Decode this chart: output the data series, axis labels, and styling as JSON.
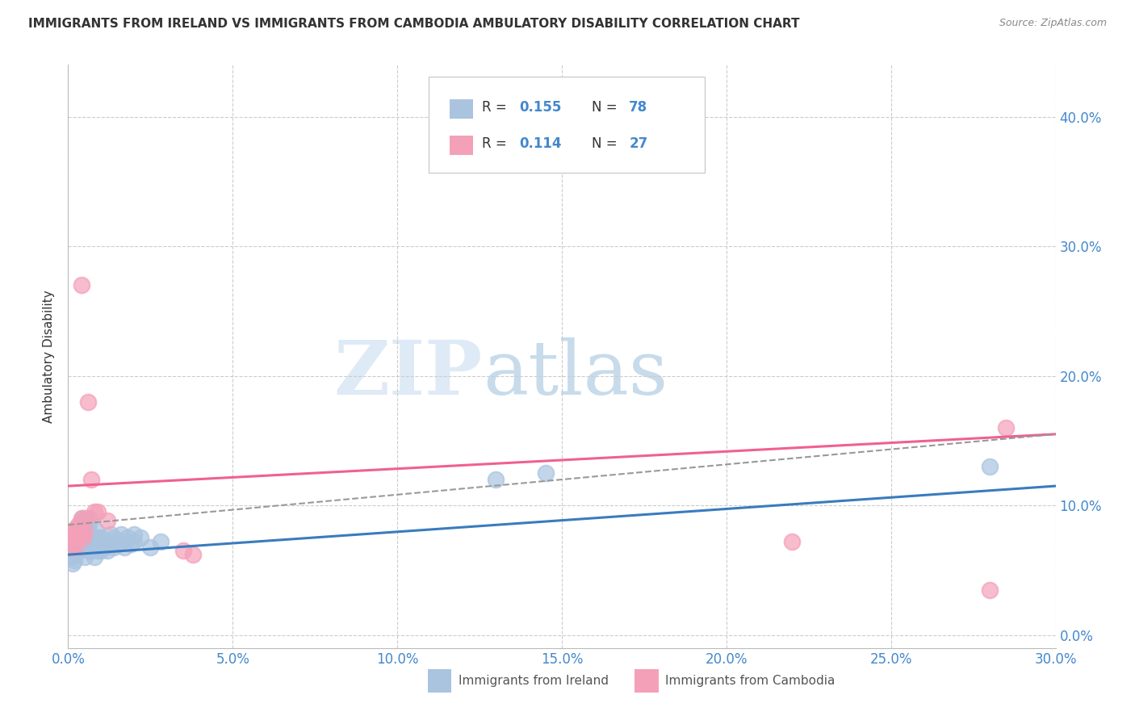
{
  "title": "IMMIGRANTS FROM IRELAND VS IMMIGRANTS FROM CAMBODIA AMBULATORY DISABILITY CORRELATION CHART",
  "source": "Source: ZipAtlas.com",
  "ylabel": "Ambulatory Disability",
  "ytick_vals": [
    0.0,
    0.1,
    0.2,
    0.3,
    0.4
  ],
  "xlim": [
    0.0,
    0.3
  ],
  "ylim": [
    -0.01,
    0.44
  ],
  "ireland_color": "#aac4e0",
  "cambodia_color": "#f4a0b8",
  "trendline_ireland_color": "#3a7bbf",
  "trendline_cambodia_color": "#f06090",
  "trendline_dashed_color": "#999999",
  "background_color": "#ffffff",
  "watermark_zip": "ZIP",
  "watermark_atlas": "atlas",
  "ireland_x": [
    0.0008,
    0.001,
    0.001,
    0.0012,
    0.0013,
    0.0015,
    0.0015,
    0.0018,
    0.002,
    0.002,
    0.002,
    0.0022,
    0.0023,
    0.0025,
    0.0025,
    0.0025,
    0.003,
    0.003,
    0.003,
    0.003,
    0.0032,
    0.0033,
    0.0035,
    0.0035,
    0.004,
    0.004,
    0.004,
    0.0042,
    0.0043,
    0.0045,
    0.0045,
    0.005,
    0.005,
    0.005,
    0.005,
    0.0053,
    0.0055,
    0.006,
    0.006,
    0.006,
    0.006,
    0.0062,
    0.0065,
    0.007,
    0.007,
    0.007,
    0.008,
    0.008,
    0.008,
    0.0085,
    0.009,
    0.009,
    0.009,
    0.01,
    0.01,
    0.01,
    0.011,
    0.011,
    0.012,
    0.012,
    0.013,
    0.013,
    0.014,
    0.014,
    0.015,
    0.016,
    0.016,
    0.017,
    0.018,
    0.019,
    0.02,
    0.02,
    0.022,
    0.025,
    0.028,
    0.13,
    0.145,
    0.28
  ],
  "ireland_y": [
    0.065,
    0.068,
    0.072,
    0.06,
    0.055,
    0.07,
    0.062,
    0.058,
    0.065,
    0.07,
    0.075,
    0.063,
    0.068,
    0.072,
    0.078,
    0.08,
    0.065,
    0.07,
    0.075,
    0.08,
    0.068,
    0.073,
    0.07,
    0.08,
    0.068,
    0.075,
    0.083,
    0.088,
    0.09,
    0.075,
    0.082,
    0.06,
    0.068,
    0.075,
    0.08,
    0.085,
    0.072,
    0.065,
    0.07,
    0.075,
    0.08,
    0.085,
    0.09,
    0.065,
    0.07,
    0.075,
    0.06,
    0.068,
    0.075,
    0.08,
    0.065,
    0.07,
    0.075,
    0.065,
    0.07,
    0.075,
    0.068,
    0.073,
    0.065,
    0.07,
    0.072,
    0.078,
    0.068,
    0.075,
    0.07,
    0.072,
    0.078,
    0.068,
    0.075,
    0.07,
    0.072,
    0.078,
    0.075,
    0.068,
    0.072,
    0.12,
    0.125,
    0.13
  ],
  "cambodia_x": [
    0.0008,
    0.001,
    0.0012,
    0.0015,
    0.0018,
    0.002,
    0.0022,
    0.0025,
    0.003,
    0.003,
    0.0032,
    0.0035,
    0.004,
    0.0042,
    0.0045,
    0.005,
    0.0055,
    0.006,
    0.007,
    0.008,
    0.009,
    0.012,
    0.035,
    0.038,
    0.22,
    0.28,
    0.285
  ],
  "cambodia_y": [
    0.075,
    0.068,
    0.072,
    0.08,
    0.075,
    0.068,
    0.082,
    0.075,
    0.08,
    0.085,
    0.075,
    0.08,
    0.27,
    0.09,
    0.075,
    0.08,
    0.09,
    0.18,
    0.12,
    0.095,
    0.095,
    0.088,
    0.065,
    0.062,
    0.072,
    0.035,
    0.16
  ]
}
